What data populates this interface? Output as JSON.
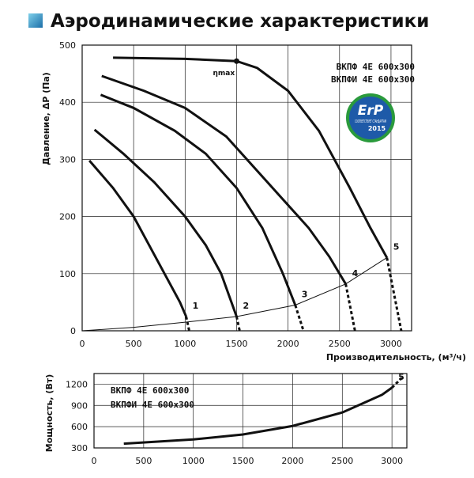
{
  "header": {
    "title": "Аэродинамические характеристики"
  },
  "chart_data": [
    {
      "type": "line",
      "x_label": "Производительность, (м³/ч)",
      "y_label": "Давление, ΔP (Па)",
      "xlim": [
        0,
        3200
      ],
      "ylim": [
        0,
        500
      ],
      "xticks": [
        0,
        500,
        1000,
        1500,
        2000,
        2500,
        3000
      ],
      "yticks": [
        0,
        100,
        200,
        300,
        400,
        500
      ],
      "grid": true,
      "models": [
        "ВКПФ 4E 600x300",
        "ВКПФИ 4E 600x300"
      ],
      "badge": {
        "title": "ErP",
        "subtitle": "СООТВЕТСТВУЕТ СТАНДАРТАМ",
        "year": "2015"
      },
      "peak": {
        "label": "ηmax",
        "x": 1500,
        "y": 472
      },
      "series": [
        {
          "name": "1",
          "color": "#111111",
          "x": [
            70,
            300,
            500,
            650,
            800,
            950,
            1010
          ],
          "values": [
            298,
            250,
            200,
            150,
            100,
            50,
            25
          ]
        },
        {
          "color": "#111111",
          "style": "dashed",
          "x": [
            1010,
            1040
          ],
          "values": [
            25,
            0
          ]
        },
        {
          "name": "2",
          "color": "#111111",
          "x": [
            120,
            400,
            700,
            1000,
            1200,
            1350,
            1450,
            1500
          ],
          "values": [
            352,
            310,
            260,
            200,
            150,
            100,
            50,
            25
          ]
        },
        {
          "color": "#111111",
          "style": "dashed",
          "x": [
            1500,
            1530
          ],
          "values": [
            25,
            0
          ]
        },
        {
          "name": "3",
          "color": "#111111",
          "x": [
            180,
            500,
            900,
            1200,
            1500,
            1750,
            1950,
            2070
          ],
          "values": [
            413,
            390,
            350,
            310,
            250,
            180,
            100,
            45
          ]
        },
        {
          "color": "#111111",
          "style": "dashed",
          "x": [
            2070,
            2150
          ],
          "values": [
            45,
            0
          ]
        },
        {
          "name": "4",
          "color": "#111111",
          "x": [
            190,
            600,
            1000,
            1400,
            1800,
            2200,
            2400,
            2560
          ],
          "values": [
            446,
            420,
            390,
            340,
            260,
            180,
            130,
            82
          ]
        },
        {
          "color": "#111111",
          "style": "dashed",
          "x": [
            2560,
            2650
          ],
          "values": [
            82,
            0
          ]
        },
        {
          "name": "5",
          "color": "#111111",
          "x": [
            300,
            1000,
            1500,
            1700,
            2000,
            2300,
            2600,
            2800,
            2960
          ],
          "values": [
            478,
            476,
            472,
            460,
            420,
            350,
            250,
            180,
            128
          ]
        },
        {
          "color": "#111111",
          "style": "dashed",
          "x": [
            2960,
            3100
          ],
          "values": [
            128,
            0
          ]
        },
        {
          "color": "#111111",
          "style": "thin",
          "x": [
            0,
            500,
            1000,
            1500,
            2070,
            2560,
            2960
          ],
          "values": [
            0,
            6,
            15,
            25,
            45,
            82,
            128
          ]
        }
      ]
    },
    {
      "type": "line",
      "y_label": "Мощность, (Вт)",
      "xlim": [
        0,
        3150
      ],
      "ylim": [
        300,
        1350
      ],
      "xticks": [
        0,
        500,
        1000,
        1500,
        2000,
        2500,
        3000
      ],
      "yticks": [
        300,
        600,
        900,
        1200
      ],
      "grid": true,
      "models": [
        "ВКПФ 4E 600x300",
        "ВКПФИ 4E 600x300"
      ],
      "series": [
        {
          "name": "5",
          "color": "#111111",
          "x": [
            300,
            1000,
            1500,
            2000,
            2500,
            2900,
            3000
          ],
          "values": [
            360,
            420,
            490,
            610,
            800,
            1050,
            1150
          ]
        },
        {
          "color": "#111111",
          "style": "dashed",
          "x": [
            3000,
            3100
          ],
          "values": [
            1150,
            1290
          ]
        }
      ]
    }
  ]
}
